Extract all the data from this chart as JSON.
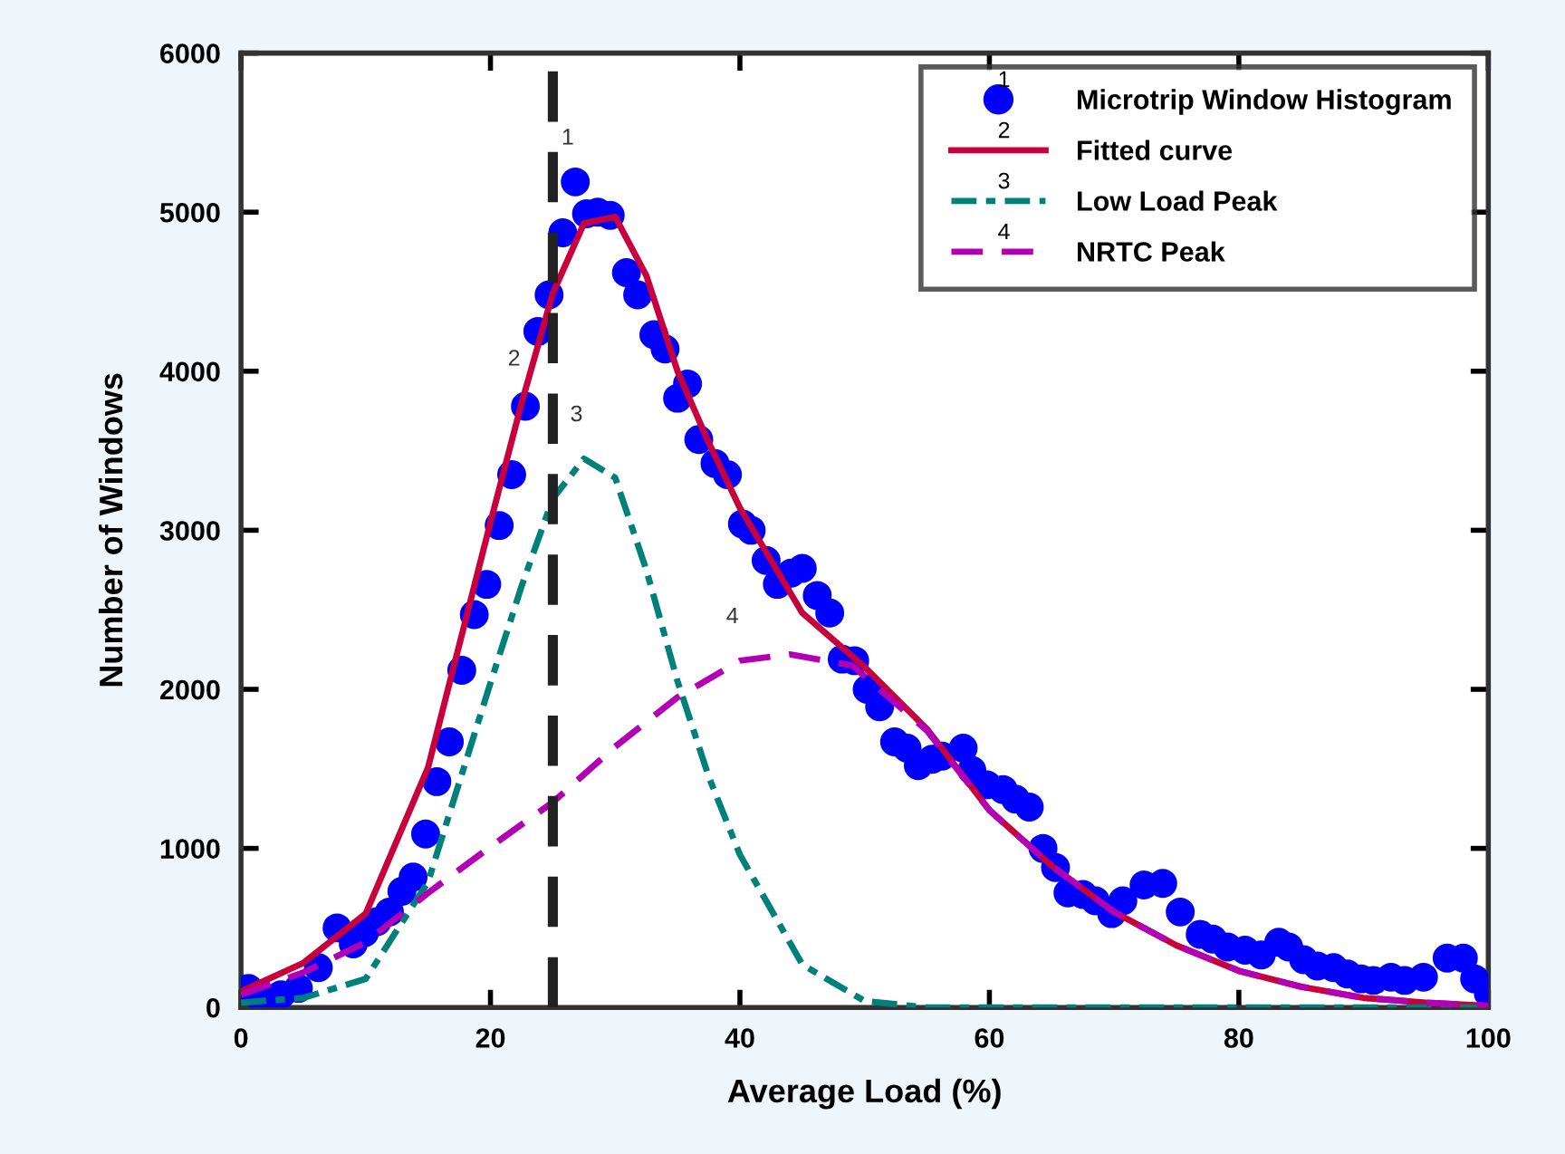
{
  "chart_data": {
    "type": "scatter",
    "xlabel": "Average Load (%)",
    "ylabel": "Number of Windows",
    "xlim": [
      0,
      100
    ],
    "xticks": [
      0,
      20,
      40,
      60,
      80,
      100
    ],
    "ylim": [
      0,
      6000
    ],
    "yticks": [
      0,
      1000,
      2000,
      3000,
      4000,
      5000,
      6000
    ],
    "grid": false,
    "legend": "top right",
    "series": [
      {
        "name": "Microtrip Window Histogram",
        "marker": "circle",
        "color": "#0000ff",
        "x": [
          0.6,
          1.7,
          3.2,
          4.6,
          6.2,
          7.7,
          9,
          9.9,
          10.9,
          11.9,
          12.9,
          13.8,
          14.8,
          15.7,
          16.7,
          17.7,
          18.7,
          19.7,
          20.7,
          21.7,
          22.8,
          23.8,
          24.7,
          25.8,
          26.8,
          27.7,
          28.6,
          29.6,
          30.9,
          31.8,
          33.1,
          34,
          35,
          35.8,
          36.7,
          38,
          39,
          40.2,
          40.9,
          42.1,
          43,
          44.1,
          45,
          46.2,
          47.2,
          48.2,
          49.2,
          50.2,
          51.2,
          52.4,
          53.4,
          54.3,
          55.4,
          56.2,
          57.9,
          58.6,
          59.8,
          61.1,
          62.1,
          63.2,
          64.3,
          65.3,
          66.3,
          67.5,
          68.5,
          69.8,
          70.7,
          72.4,
          73.9,
          75.3,
          76.9,
          77.9,
          79.1,
          80.5,
          81.8,
          83.2,
          84,
          85.2,
          86.3,
          87.6,
          88.7,
          89.8,
          90.8,
          92.2,
          93.3,
          94.8,
          96.7,
          98,
          98.9,
          100
        ],
        "values": [
          120,
          40,
          80,
          120,
          250,
          500,
          400,
          470,
          540,
          600,
          730,
          820,
          1090,
          1420,
          1670,
          2120,
          2470,
          2660,
          3030,
          3350,
          3780,
          4250,
          4480,
          4870,
          5190,
          4990,
          5000,
          4980,
          4620,
          4480,
          4230,
          4140,
          3830,
          3920,
          3570,
          3420,
          3350,
          3040,
          3000,
          2810,
          2660,
          2730,
          2760,
          2590,
          2480,
          2190,
          2180,
          2000,
          1890,
          1670,
          1630,
          1520,
          1560,
          1580,
          1630,
          1490,
          1400,
          1370,
          1310,
          1260,
          1000,
          880,
          720,
          710,
          670,
          590,
          670,
          770,
          780,
          600,
          460,
          430,
          380,
          360,
          330,
          410,
          380,
          300,
          260,
          250,
          210,
          180,
          170,
          190,
          170,
          190,
          310,
          310,
          180,
          90
        ]
      },
      {
        "name": "Fitted curve",
        "type": "line",
        "line_style": "solid",
        "color": "#c8003c",
        "x": [
          0,
          5,
          10,
          15,
          20,
          22.5,
          25,
          27.5,
          30,
          32.5,
          35,
          37.5,
          40,
          45,
          50,
          55,
          60,
          65,
          70,
          75,
          80,
          85,
          90,
          95,
          100
        ],
        "values": [
          100,
          280,
          590,
          1510,
          3050,
          3800,
          4490,
          4930,
          4970,
          4600,
          4000,
          3550,
          3140,
          2480,
          2140,
          1750,
          1240,
          890,
          600,
          390,
          230,
          130,
          60,
          30,
          10
        ]
      },
      {
        "name": "Low Load Peak",
        "type": "line",
        "line_style": "dashdot",
        "color": "#00807a",
        "x": [
          0,
          5,
          10,
          15,
          20,
          22.5,
          25,
          27.5,
          30,
          32.5,
          35,
          37.5,
          40,
          45,
          50,
          55,
          60,
          80,
          100
        ],
        "values": [
          30,
          60,
          180,
          790,
          2040,
          2650,
          3200,
          3450,
          3330,
          2750,
          2050,
          1450,
          960,
          270,
          40,
          0,
          0,
          0,
          0
        ]
      },
      {
        "name": "NRTC Peak",
        "type": "line",
        "line_style": "dashed",
        "color": "#b400b4",
        "x": [
          0,
          5,
          10,
          15,
          20,
          25,
          30,
          35,
          40,
          44,
          49,
          55,
          60,
          65,
          70,
          75,
          80,
          85,
          90,
          95,
          100
        ],
        "values": [
          80,
          220,
          410,
          720,
          1010,
          1290,
          1640,
          1950,
          2180,
          2220,
          2150,
          1740,
          1240,
          890,
          600,
          390,
          230,
          130,
          60,
          30,
          10
        ]
      }
    ],
    "ref_lines": [
      {
        "axis": "x",
        "value": 25,
        "color": "#222222",
        "line_style": "dashed"
      }
    ],
    "annotations": [
      {
        "text": "1",
        "x": 26.8,
        "y": 5190
      },
      {
        "text": "2",
        "x": 22.5,
        "y": 3800
      },
      {
        "text": "3",
        "x": 27.5,
        "y": 3450
      },
      {
        "text": "4",
        "x": 40,
        "y": 2180
      }
    ]
  }
}
